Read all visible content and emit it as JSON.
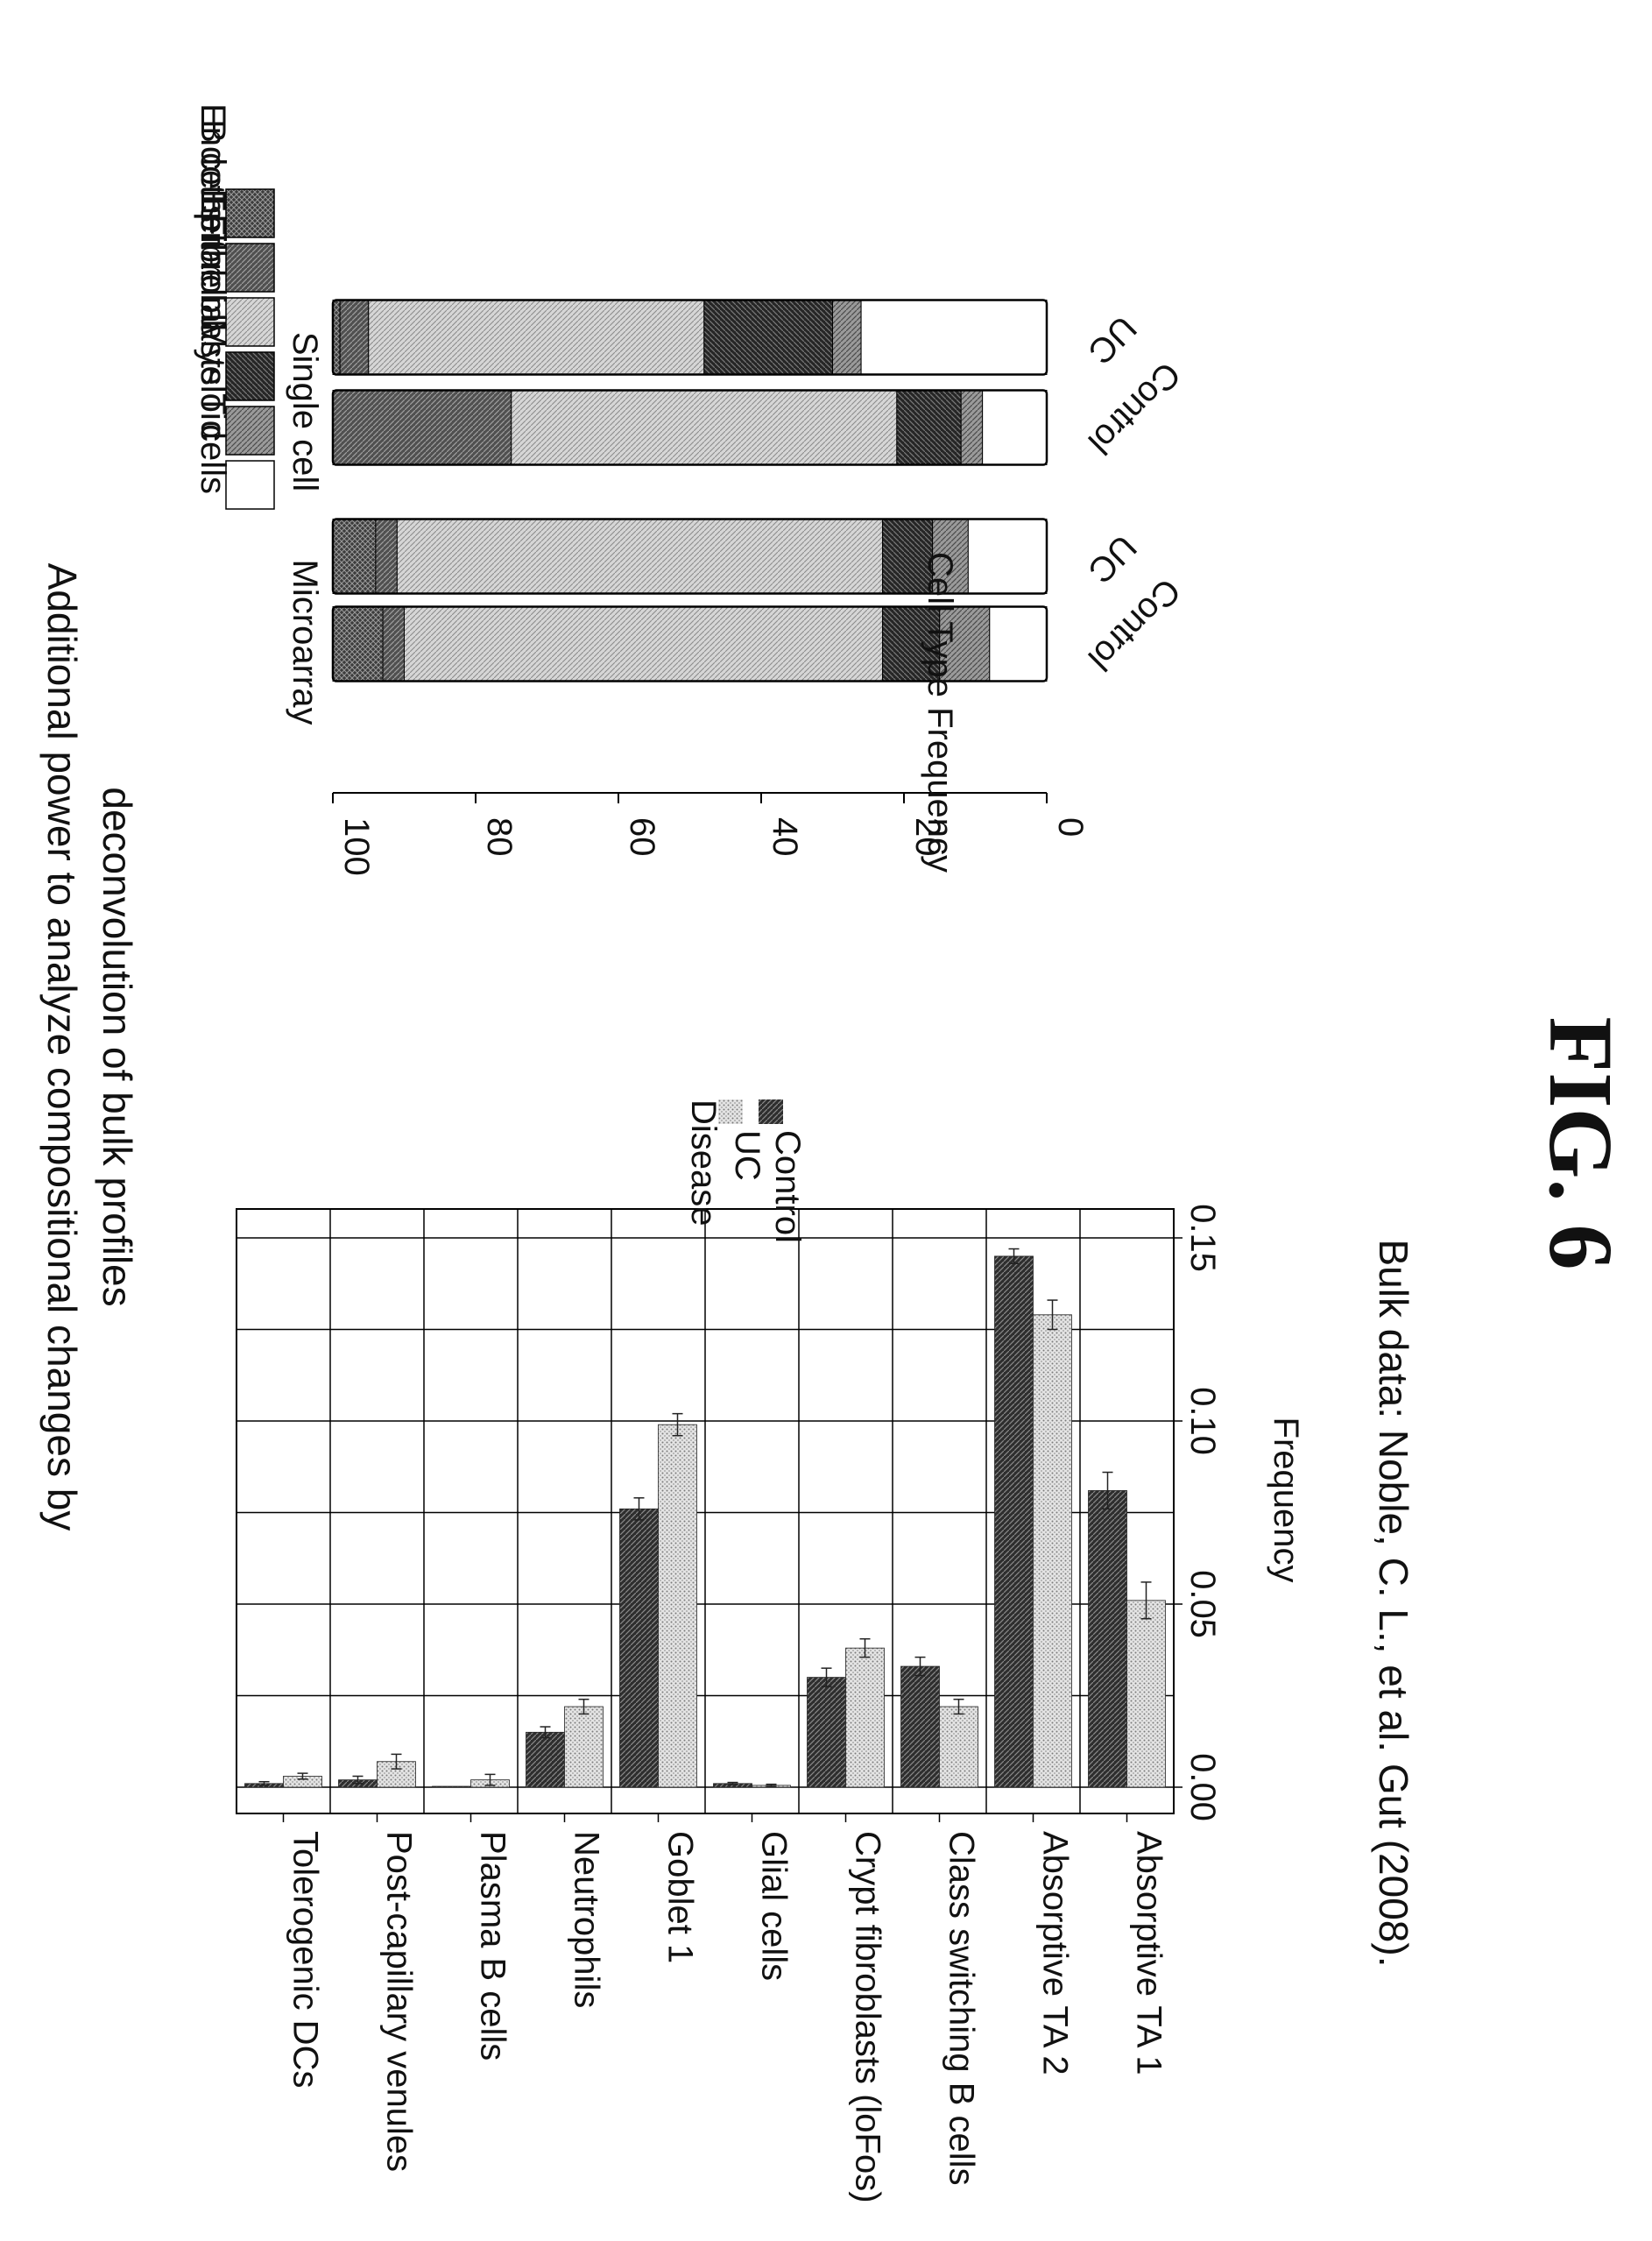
{
  "figure": {
    "title_line1": "Additional power to analyze compositional changes by",
    "title_line2": "deconvolution of bulk profiles",
    "caption": "Bulk data: Noble, C. L., et al. Gut (2008).",
    "fig_label": "FIG. 6"
  },
  "chart_data": [
    {
      "type": "bar",
      "orientation": "horizontal",
      "xlabel": "Frequency",
      "ylabel": "",
      "xlim": [
        0,
        0.15
      ],
      "x_ticks": [
        "0.00",
        "0.05",
        "0.10",
        "0.15"
      ],
      "grid": true,
      "legend_title": "Disease",
      "legend_position": "top-right",
      "categories": [
        "Tolerogenic DCs",
        "Post-capillary venules",
        "Plasma B cells",
        "Neutrophils",
        "Goblet 1",
        "Glial cells",
        "Crypt fibroblasts (loFos)",
        "Class switching B cells",
        "Absorptive TA 2",
        "Absorptive TA 1"
      ],
      "series": [
        {
          "name": "Control",
          "values": [
            0.001,
            0.002,
            0.0,
            0.015,
            0.076,
            0.001,
            0.03,
            0.033,
            0.145,
            0.081
          ],
          "errors": [
            0.0005,
            0.001,
            0.0,
            0.0015,
            0.003,
            0.0003,
            0.0025,
            0.0025,
            0.002,
            0.005
          ]
        },
        {
          "name": "UC",
          "values": [
            0.003,
            0.007,
            0.002,
            0.022,
            0.099,
            0.0005,
            0.038,
            0.022,
            0.129,
            0.051
          ],
          "errors": [
            0.0008,
            0.002,
            0.0015,
            0.002,
            0.003,
            0.0003,
            0.0025,
            0.002,
            0.004,
            0.005
          ]
        }
      ]
    },
    {
      "type": "bar",
      "stacked": true,
      "ylabel": "Cell Type Frequency",
      "ylim": [
        0,
        100
      ],
      "y_ticks": [
        "0",
        "20",
        "40",
        "60",
        "80",
        "100"
      ],
      "groups": [
        "Microarray",
        "Single cell"
      ],
      "categories": [
        "Control",
        "UC",
        "Control",
        "UC"
      ],
      "legend_position": "right",
      "series": [
        {
          "name": "B cells",
          "values": [
            7,
            6,
            0,
            1
          ]
        },
        {
          "name": "Endothelial",
          "values": [
            3,
            3,
            25,
            4
          ]
        },
        {
          "name": "Epithelial",
          "values": [
            67,
            68,
            54,
            47
          ]
        },
        {
          "name": "Fibroblasts",
          "values": [
            8,
            7,
            9,
            18
          ]
        },
        {
          "name": "Myeloid",
          "values": [
            7,
            5,
            3,
            4
          ]
        },
        {
          "name": "T cells",
          "values": [
            8,
            11,
            9,
            26
          ]
        }
      ]
    }
  ],
  "colors": {
    "control": "#3a3a3a",
    "uc": "#c8c8c8",
    "b_cells": "#404040",
    "endothelial": "#5a5a5a",
    "epithelial": "#bdbdbd",
    "fibroblasts": "#303030",
    "myeloid": "#8c8c8c",
    "t_cells": "#ffffff"
  }
}
